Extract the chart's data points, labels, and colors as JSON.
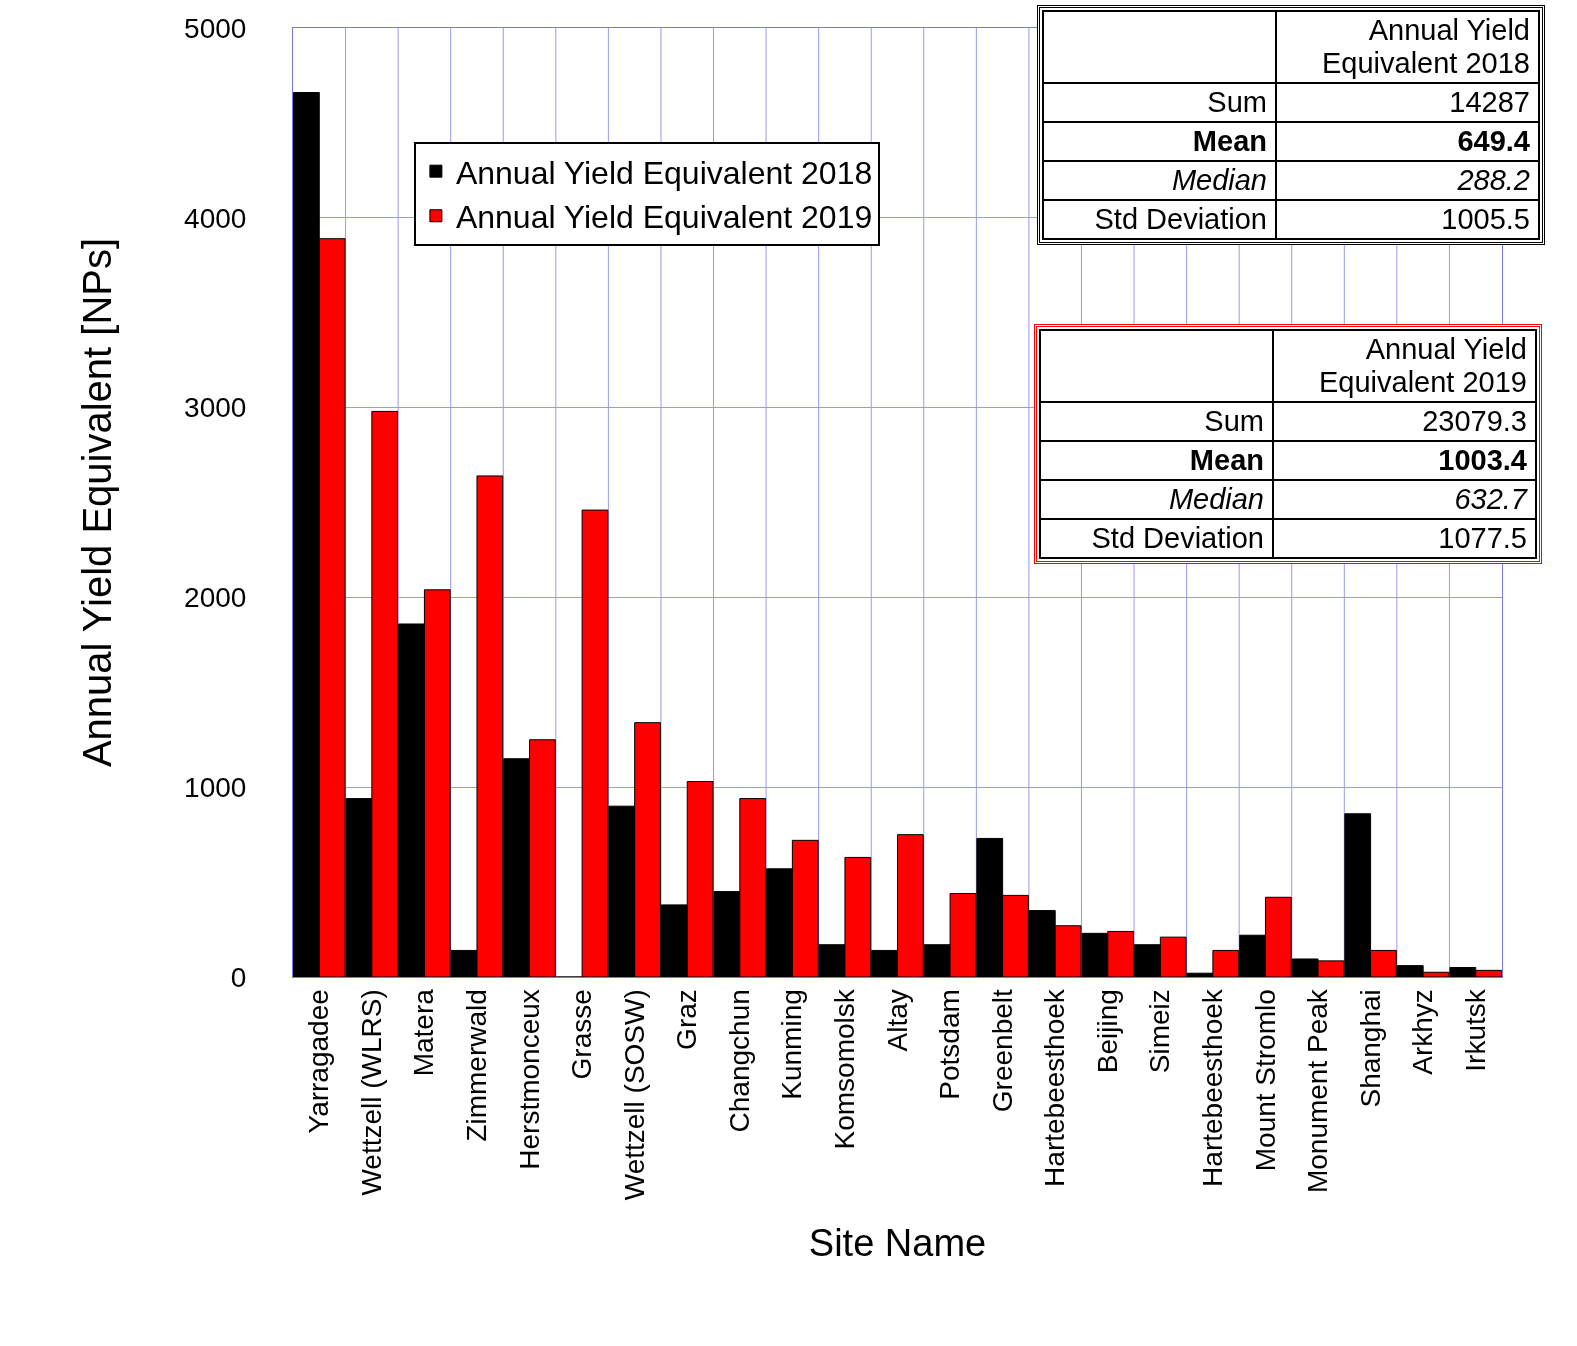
{
  "chart_data": [
    {
      "type": "bar",
      "xlabel": "Site Name",
      "ylabel": "Annual Yield Equivalent [NPs]",
      "categories": [
        "Yarragadee",
        "Wettzell (WLRS)",
        "Matera",
        "Zimmerwald",
        "Herstmonceux",
        "Grasse",
        "Wettzell (SOSW)",
        "Graz",
        "Changchun",
        "Kunming",
        "Komsomolsk",
        "Altay",
        "Potsdam",
        "Greenbelt",
        "Hartebeesthoek",
        "Beijing",
        "Simeiz",
        "Hartebeesthoek",
        "Mount Stromlo",
        "Monument Peak",
        "Shanghai",
        "Arkhyz",
        "Irkutsk"
      ],
      "series": [
        {
          "name": "Annual Yield Equivalent 2018",
          "color": "#000000",
          "values": [
            4660,
            940,
            1860,
            140,
            1150,
            0,
            900,
            380,
            450,
            570,
            170,
            140,
            170,
            730,
            350,
            230,
            170,
            20,
            220,
            95,
            860,
            60,
            50
          ]
        },
        {
          "name": "Annual Yield Equivalent 2019",
          "color": "#ff0000",
          "values": [
            3890,
            2980,
            2040,
            2640,
            1250,
            2460,
            1340,
            1030,
            940,
            720,
            630,
            750,
            440,
            430,
            270,
            240,
            210,
            140,
            420,
            85,
            140,
            25,
            35
          ]
        }
      ],
      "ylim": [
        0,
        5000
      ],
      "yticks": [
        0,
        1000,
        2000,
        3000,
        4000,
        5000
      ],
      "grid": true,
      "legend": "top"
    },
    {
      "type": "other",
      "title": "Annual Yield Equivalent 2018",
      "color": "#000000",
      "annotations": [
        "Sum",
        "14287",
        "Mean",
        "649.4",
        "Median",
        "288.2",
        "Std Deviation",
        "1005.5"
      ]
    },
    {
      "type": "other",
      "title": "Annual Yield Equivalent 2019",
      "color": "#ff0000",
      "annotations": [
        "Sum",
        "23079.3",
        "Mean",
        "1003.4",
        "Median",
        "632.7",
        "Std Deviation",
        "1077.5"
      ]
    }
  ]
}
